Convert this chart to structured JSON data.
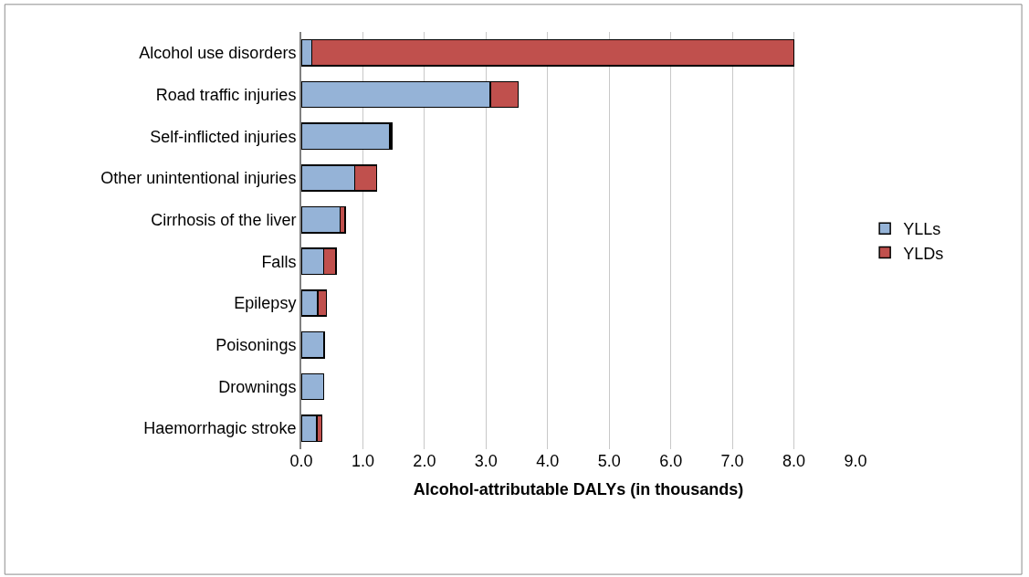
{
  "chart_data": {
    "type": "bar",
    "orientation": "horizontal",
    "stacked": true,
    "xlabel": "Alcohol-attributable DALYs (in thousands)",
    "categories": [
      "Alcohol use disorders",
      "Road traffic injuries",
      "Self-inflicted injuries",
      "Other unintentional injuries",
      "Cirrhosis of the liver",
      "Falls",
      "Epilepsy",
      "Poisonings",
      "Drownings",
      "Haemorrhagic stroke"
    ],
    "series": [
      {
        "name": "YLLs",
        "color": "#95b3d7",
        "values": [
          0.17,
          3.07,
          1.44,
          0.87,
          0.63,
          0.36,
          0.27,
          0.37,
          0.36,
          0.25
        ]
      },
      {
        "name": "YLDs",
        "color": "#c0504d",
        "values": [
          7.83,
          0.45,
          0.03,
          0.35,
          0.08,
          0.2,
          0.14,
          null,
          null,
          0.08
        ]
      }
    ],
    "xlim": [
      0,
      9
    ],
    "xticks": [
      {
        "value": 0,
        "label": "0.0"
      },
      {
        "value": 1,
        "label": "1.0"
      },
      {
        "value": 2,
        "label": "2.0"
      },
      {
        "value": 3,
        "label": "3.0"
      },
      {
        "value": 4,
        "label": "4.0"
      },
      {
        "value": 5,
        "label": "5.0"
      },
      {
        "value": 6,
        "label": "6.0"
      },
      {
        "value": 7,
        "label": "7.0"
      },
      {
        "value": 8,
        "label": "8.0"
      },
      {
        "value": 9,
        "label": "9.0"
      }
    ],
    "grid": "x",
    "legend": "right"
  }
}
